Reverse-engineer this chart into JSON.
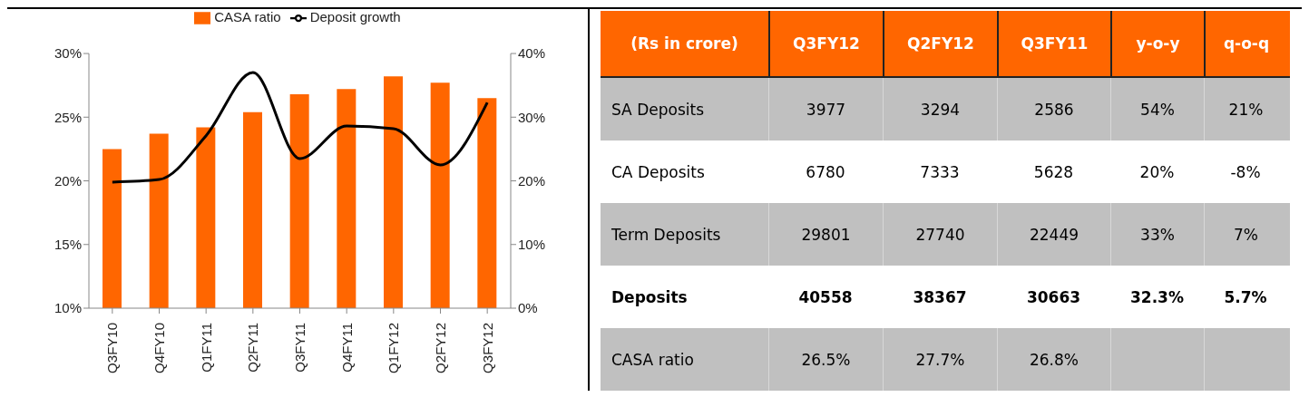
{
  "chart_data": [
    {
      "type": "bar",
      "categories": [
        "Q3FY10",
        "Q4FY10",
        "Q1FY11",
        "Q2FY11",
        "Q3FY11",
        "Q4FY11",
        "Q1FY12",
        "Q2FY12",
        "Q3FY12"
      ],
      "series": [
        {
          "name": "CASA ratio",
          "type": "bar",
          "color": "#ff6600",
          "values": [
            22.5,
            23.7,
            24.2,
            25.4,
            26.8,
            27.2,
            28.2,
            27.7,
            26.5
          ]
        },
        {
          "name": "Deposit growth",
          "type": "line",
          "axis": "y2",
          "color": "#000000",
          "values": [
            19.8,
            20.2,
            27.1,
            37.0,
            23.5,
            28.6,
            28.2,
            22.5,
            32.3
          ]
        }
      ],
      "ylim": [
        10,
        30
      ],
      "yticks": [
        {
          "value": 10,
          "label": "10%"
        },
        {
          "value": 15,
          "label": "15%"
        },
        {
          "value": 20,
          "label": "20%"
        },
        {
          "value": 25,
          "label": "25%"
        },
        {
          "value": 30,
          "label": "30%"
        }
      ],
      "y2lim": [
        0,
        40
      ],
      "y2ticks": [
        {
          "value": 0,
          "label": "0%"
        },
        {
          "value": 10,
          "label": "10%"
        },
        {
          "value": 20,
          "label": "20%"
        },
        {
          "value": 30,
          "label": "30%"
        },
        {
          "value": 40,
          "label": "40%"
        }
      ],
      "legend": "top",
      "marker": "none",
      "line_style": "solid"
    },
    {
      "type": "other",
      "categories": [
        "(Rs in crore)",
        "Q3FY12",
        "Q2FY12",
        "Q3FY11",
        "y-o-y",
        "q-o-q"
      ],
      "y_categories": [
        "SA Deposits",
        "CA Deposits",
        "Term Deposits",
        "Deposits",
        "CASA ratio"
      ],
      "cell_labels": [
        [
          "3977",
          "3294",
          "2586",
          "54%",
          "21%"
        ],
        [
          "6780",
          "7333",
          "5628",
          "20%",
          "-8%"
        ],
        [
          "29801",
          "27740",
          "22449",
          "33%",
          "7%"
        ],
        [
          "40558",
          "38367",
          "30663",
          "32.3%",
          "5.7%"
        ],
        [
          "26.5%",
          "27.7%",
          "26.8%",
          null,
          null
        ]
      ]
    }
  ]
}
